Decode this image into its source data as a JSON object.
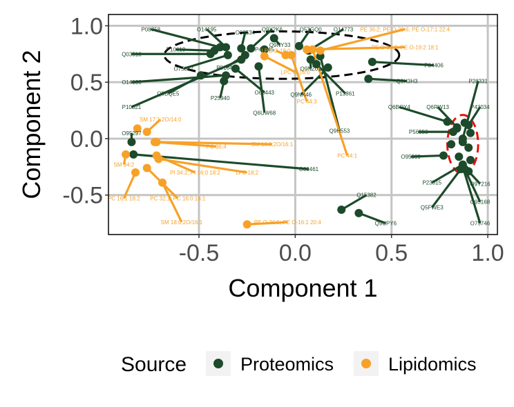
{
  "colors": {
    "proteomics": "#1c4a2a",
    "lipidomics": "#f7a128",
    "grid": "#c4c4c4",
    "ellipse_black": "#000000",
    "ellipse_red": "#e8100c"
  },
  "chart_data": {
    "type": "scatter",
    "xlabel": "Component 1",
    "ylabel": "Component 2",
    "xlim": [
      -0.97,
      1.05
    ],
    "ylim": [
      -0.85,
      1.1
    ],
    "xticks": [
      -0.5,
      0.0,
      0.5,
      1.0
    ],
    "xtick_labels": [
      "-0.5",
      "0.0",
      "0.5",
      "1.0"
    ],
    "yticks": [
      -0.5,
      0.0,
      0.5,
      1.0
    ],
    "ytick_labels": [
      "-0.5",
      "0.0",
      "0.5",
      "1.0"
    ],
    "grid": true,
    "legend": {
      "title": "Source",
      "position": "bottom",
      "entries": [
        {
          "name": "Proteomics",
          "color_key": "proteomics"
        },
        {
          "name": "Lipidomics",
          "color_key": "lipidomics"
        }
      ]
    },
    "series": [
      {
        "name": "Proteomics",
        "points": [
          {
            "label": "P08758",
            "x": -0.39,
            "y": 0.81,
            "lx": -0.75,
            "ly": 0.97
          },
          {
            "label": "O14195",
            "x": -0.36,
            "y": 0.81,
            "lx": -0.46,
            "ly": 0.97
          },
          {
            "label": "O00534",
            "x": -0.28,
            "y": 0.8,
            "lx": -0.26,
            "ly": 0.94
          },
          {
            "label": "Q9Y2K6",
            "x": -0.23,
            "y": 0.8,
            "lx": -0.12,
            "ly": 0.97
          },
          {
            "label": "Q9NY33",
            "x": -0.11,
            "y": 0.89,
            "lx": -0.08,
            "ly": 0.83
          },
          {
            "label": "Q53GQ0",
            "x": 0.02,
            "y": 0.82,
            "lx": 0.08,
            "ly": 0.97
          },
          {
            "label": "O14773",
            "x": 0.07,
            "y": 0.78,
            "lx": 0.25,
            "ly": 0.97
          },
          {
            "label": "P10619",
            "x": -0.42,
            "y": 0.78,
            "lx": -0.62,
            "ly": 0.79
          },
          {
            "label": "Q03518",
            "x": -0.44,
            "y": 0.75,
            "lx": -0.85,
            "ly": 0.75
          },
          {
            "label": "O75347",
            "x": -0.35,
            "y": 0.74,
            "lx": -0.58,
            "ly": 0.62
          },
          {
            "label": "P51648",
            "x": -0.26,
            "y": 0.74,
            "lx": -0.36,
            "ly": 0.63
          },
          {
            "label": "P42345",
            "x": -0.16,
            "y": 0.79,
            "lx": -0.16,
            "ly": 0.79
          },
          {
            "label": "Q9NZ01",
            "x": 0.08,
            "y": 0.7,
            "lx": 0.08,
            "ly": 0.62
          },
          {
            "label": "P04406",
            "x": 0.4,
            "y": 0.68,
            "lx": 0.72,
            "ly": 0.65
          },
          {
            "label": "O14933",
            "x": -0.36,
            "y": 0.56,
            "lx": -0.85,
            "ly": 0.5
          },
          {
            "label": "Q9BQE5",
            "x": -0.49,
            "y": 0.56,
            "lx": -0.66,
            "ly": 0.4
          },
          {
            "label": "P25940",
            "x": -0.37,
            "y": 0.51,
            "lx": -0.39,
            "ly": 0.36
          },
          {
            "label": "O60443",
            "x": -0.31,
            "y": 0.62,
            "lx": -0.16,
            "ly": 0.41
          },
          {
            "label": "Q6UW68",
            "x": -0.19,
            "y": 0.64,
            "lx": -0.16,
            "ly": 0.23
          },
          {
            "label": "Q9NX46",
            "x": 0.17,
            "y": 0.63,
            "lx": 0.03,
            "ly": 0.39
          },
          {
            "label": "P13861",
            "x": 0.11,
            "y": 0.66,
            "lx": 0.26,
            "ly": 0.4
          },
          {
            "label": "Q9H3H3",
            "x": 0.38,
            "y": 0.53,
            "lx": 0.58,
            "ly": 0.51
          },
          {
            "label": "P10321",
            "x": -0.28,
            "y": 0.7,
            "lx": -0.85,
            "ly": 0.28
          },
          {
            "label": "Q9H553",
            "x": 0.13,
            "y": 0.73,
            "lx": 0.23,
            "ly": 0.07
          },
          {
            "label": "O95297",
            "x": -0.85,
            "y": -0.03,
            "lx": -0.85,
            "ly": 0.05
          },
          {
            "label": "O00461",
            "x": -0.84,
            "y": -0.14,
            "lx": 0.07,
            "ly": -0.27
          },
          {
            "label": "P28331",
            "x": 0.87,
            "y": 0.0,
            "lx": 0.95,
            "ly": 0.51
          },
          {
            "label": "Q6BOY4",
            "x": 0.79,
            "y": 0.15,
            "lx": 0.54,
            "ly": 0.28
          },
          {
            "label": "Q6RW13",
            "x": 0.84,
            "y": 0.1,
            "lx": 0.74,
            "ly": 0.28
          },
          {
            "label": "P43034",
            "x": 0.9,
            "y": 0.12,
            "lx": 0.96,
            "ly": 0.28
          },
          {
            "label": "P56556",
            "x": 0.82,
            "y": 0.06,
            "lx": 0.64,
            "ly": 0.06
          },
          {
            "label": "O95989",
            "x": 0.77,
            "y": -0.15,
            "lx": 0.6,
            "ly": -0.16
          },
          {
            "label": "P23515",
            "x": 0.87,
            "y": -0.23,
            "lx": 0.71,
            "ly": -0.39
          },
          {
            "label": "Q5FWE3",
            "x": 0.86,
            "y": -0.27,
            "lx": 0.71,
            "ly": -0.61
          },
          {
            "label": "Q9Y216",
            "x": 0.9,
            "y": -0.29,
            "lx": 0.96,
            "ly": -0.4
          },
          {
            "label": "O95168",
            "x": 0.88,
            "y": -0.27,
            "lx": 0.96,
            "ly": -0.56
          },
          {
            "label": "O75746",
            "x": 0.87,
            "y": -0.25,
            "lx": 0.96,
            "ly": -0.75
          },
          {
            "label": "",
            "x": 0.84,
            "y": 0.09,
            "lx": 0.84,
            "ly": 0.09
          },
          {
            "label": "",
            "x": 0.88,
            "y": 0.14,
            "lx": 0.88,
            "ly": 0.14
          },
          {
            "label": "",
            "x": 0.91,
            "y": 0.05,
            "lx": 0.91,
            "ly": 0.05
          },
          {
            "label": "",
            "x": 0.87,
            "y": -0.03,
            "lx": 0.87,
            "ly": -0.03
          },
          {
            "label": "",
            "x": 0.9,
            "y": -0.08,
            "lx": 0.9,
            "ly": -0.08
          },
          {
            "label": "",
            "x": 0.85,
            "y": -0.16,
            "lx": 0.85,
            "ly": -0.16
          },
          {
            "label": "",
            "x": 0.81,
            "y": -0.05,
            "lx": 0.81,
            "ly": -0.05
          },
          {
            "label": "",
            "x": 0.91,
            "y": -0.19,
            "lx": 0.91,
            "ly": -0.19
          },
          {
            "label": "Q15382",
            "x": 0.24,
            "y": -0.63,
            "lx": 0.37,
            "ly": -0.5
          },
          {
            "label": "Q9UPY6",
            "x": 0.33,
            "y": -0.66,
            "lx": 0.47,
            "ly": -0.75
          }
        ]
      },
      {
        "name": "Lipidomics",
        "points": [
          {
            "label": "PE 36:2; PE O-39:6; PE O-17:1 22:4",
            "x": 0.13,
            "y": 0.78,
            "lx": 0.57,
            "ly": 0.97
          },
          {
            "label": "PE O-37:3; PE O-19:2 18:1",
            "x": 0.06,
            "y": 0.79,
            "lx": 0.57,
            "ly": 0.81
          },
          {
            "label": "LPC O-18:0",
            "x": -0.05,
            "y": 0.74,
            "lx": -0.1,
            "ly": 0.78
          },
          {
            "label": "LPC O-16:0",
            "x": -0.16,
            "y": 0.73,
            "lx": 0.0,
            "ly": 0.59
          },
          {
            "label": "PC 44:3",
            "x": -0.02,
            "y": 0.74,
            "lx": 0.06,
            "ly": 0.33
          },
          {
            "label": "PC 44:1",
            "x": 0.09,
            "y": 0.79,
            "lx": 0.27,
            "ly": -0.15
          },
          {
            "label": "SM 17:1;2O/14:0",
            "x": -0.77,
            "y": 0.06,
            "lx": -0.7,
            "ly": 0.17
          },
          {
            "label": "SM 16:0;2O/16:1",
            "x": -0.72,
            "y": -0.03,
            "lx": -0.12,
            "ly": -0.05
          },
          {
            "label": "PC 36:4",
            "x": -0.73,
            "y": -0.03,
            "lx": -0.41,
            "ly": -0.07
          },
          {
            "label": "SM 34:2",
            "x": -0.88,
            "y": -0.14,
            "lx": -0.89,
            "ly": -0.23
          },
          {
            "label": "PI 34:2; PI 16:0 18:2",
            "x": -0.72,
            "y": -0.15,
            "lx": -0.52,
            "ly": -0.3
          },
          {
            "label": "LPE 18:2",
            "x": -0.71,
            "y": -0.18,
            "lx": -0.25,
            "ly": -0.3
          },
          {
            "label": "PC 16:1 18:2",
            "x": -0.83,
            "y": -0.3,
            "lx": -0.89,
            "ly": -0.53
          },
          {
            "label": "PC 32:1; PC 16:0 16:1",
            "x": -0.77,
            "y": -0.26,
            "lx": -0.61,
            "ly": -0.53
          },
          {
            "label": "SM 18:0;2O/16:1",
            "x": -0.69,
            "y": -0.39,
            "lx": -0.59,
            "ly": -0.74
          },
          {
            "label": "PE O-36:5; PE O-16:1 20:4",
            "x": -0.25,
            "y": -0.76,
            "lx": -0.04,
            "ly": -0.74
          },
          {
            "label": "",
            "x": -0.82,
            "y": 0.09,
            "lx": -0.82,
            "ly": 0.09
          }
        ]
      }
    ],
    "ellipses": [
      {
        "color_key": "ellipse_black",
        "cx": -0.07,
        "cy": 0.74,
        "rx": 0.61,
        "ry": 0.21
      },
      {
        "color_key": "ellipse_red",
        "cx": 0.87,
        "cy": -0.05,
        "rx": 0.08,
        "ry": 0.26
      }
    ]
  }
}
